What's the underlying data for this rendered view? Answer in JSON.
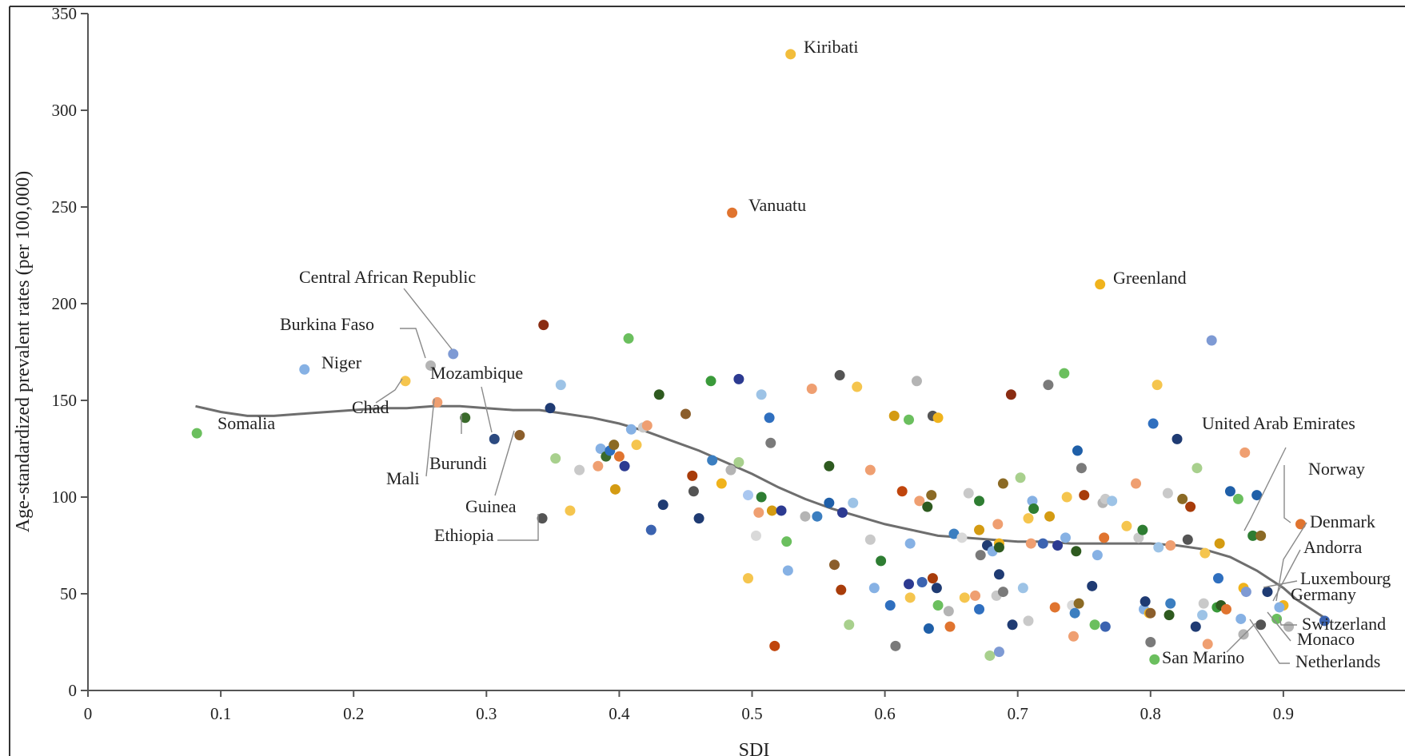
{
  "chart_data": {
    "type": "scatter",
    "xlabel": "SDI",
    "ylabel": "Age-standardized prevalent rates (per 100,000)",
    "xlim": [
      0,
      1.0
    ],
    "ylim": [
      0,
      350
    ],
    "x_ticks": [
      "0",
      "0.1",
      "0.2",
      "0.3",
      "0.4",
      "0.5",
      "0.6",
      "0.7",
      "0.8",
      "0.9"
    ],
    "y_ticks": [
      "0",
      "50",
      "100",
      "150",
      "200",
      "250",
      "300",
      "350"
    ],
    "grid": false,
    "legend": "none",
    "trend_line": {
      "color": "#6e6e6e",
      "points": [
        [
          0.081,
          147
        ],
        [
          0.1,
          144
        ],
        [
          0.12,
          142
        ],
        [
          0.14,
          142
        ],
        [
          0.16,
          143
        ],
        [
          0.18,
          144
        ],
        [
          0.2,
          145
        ],
        [
          0.22,
          146
        ],
        [
          0.24,
          146
        ],
        [
          0.26,
          147
        ],
        [
          0.28,
          147
        ],
        [
          0.3,
          146
        ],
        [
          0.32,
          145
        ],
        [
          0.34,
          145
        ],
        [
          0.36,
          143
        ],
        [
          0.38,
          141
        ],
        [
          0.4,
          138
        ],
        [
          0.42,
          134
        ],
        [
          0.44,
          129
        ],
        [
          0.46,
          124
        ],
        [
          0.48,
          118
        ],
        [
          0.5,
          112
        ],
        [
          0.52,
          105
        ],
        [
          0.54,
          99
        ],
        [
          0.56,
          94
        ],
        [
          0.58,
          90
        ],
        [
          0.6,
          86
        ],
        [
          0.62,
          83
        ],
        [
          0.64,
          80
        ],
        [
          0.66,
          79
        ],
        [
          0.68,
          78
        ],
        [
          0.7,
          77
        ],
        [
          0.72,
          77
        ],
        [
          0.74,
          76
        ],
        [
          0.76,
          76
        ],
        [
          0.78,
          76
        ],
        [
          0.8,
          76
        ],
        [
          0.82,
          75
        ],
        [
          0.84,
          73
        ],
        [
          0.86,
          69
        ],
        [
          0.88,
          62
        ],
        [
          0.9,
          53
        ],
        [
          0.91,
          47
        ],
        [
          0.93,
          38
        ]
      ]
    },
    "labeled_points": [
      {
        "name": "Kiribati",
        "x": 0.529,
        "y": 329,
        "color": "#f2bd3b"
      },
      {
        "name": "Vanuatu",
        "x": 0.485,
        "y": 247,
        "color": "#e0742f"
      },
      {
        "name": "Greenland",
        "x": 0.762,
        "y": 210,
        "color": "#f0b31c"
      },
      {
        "name": "Central African Republic",
        "x": 0.275,
        "y": 174,
        "color": "#7e9ad4"
      },
      {
        "name": "Burkina Faso",
        "x": 0.258,
        "y": 168,
        "color": "#b4b4b4"
      },
      {
        "name": "Niger",
        "x": 0.163,
        "y": 166,
        "color": "#86b1e4"
      },
      {
        "name": "Chad",
        "x": 0.239,
        "y": 160,
        "color": "#f5c54e"
      },
      {
        "name": "Mozambique",
        "x": 0.306,
        "y": 130,
        "color": "#2c4a80"
      },
      {
        "name": "Mali",
        "x": 0.263,
        "y": 149,
        "color": "#ef9f71"
      },
      {
        "name": "Burundi",
        "x": 0.284,
        "y": 141,
        "color": "#3a6a2b"
      },
      {
        "name": "Guinea",
        "x": 0.325,
        "y": 132,
        "color": "#8b5e2b"
      },
      {
        "name": "Ethiopia",
        "x": 0.342,
        "y": 89,
        "color": "#545454"
      },
      {
        "name": "Somalia",
        "x": 0.082,
        "y": 133,
        "color": "#6bbf5e"
      },
      {
        "name": "United Arab Emirates",
        "x": 0.883,
        "y": 80,
        "color": "#8b6a25"
      },
      {
        "name": "Norway",
        "x": 0.913,
        "y": 86,
        "color": "#e0742f"
      },
      {
        "name": "Denmark",
        "x": 0.9,
        "y": 44,
        "color": "#f0b31c"
      },
      {
        "name": "Andorra",
        "x": 0.897,
        "y": 43,
        "color": "#86b1e4"
      },
      {
        "name": "Luxembourg",
        "x": 0.888,
        "y": 51,
        "color": "#1f3b73"
      },
      {
        "name": "Germany",
        "x": 0.931,
        "y": 36,
        "color": "#3b63b0"
      },
      {
        "name": "Switzerland",
        "x": 0.904,
        "y": 33,
        "color": "#b4b4b4"
      },
      {
        "name": "Monaco",
        "x": 0.895,
        "y": 37,
        "color": "#6bbf5e"
      },
      {
        "name": "San Marino",
        "x": 0.87,
        "y": 29,
        "color": "#b4b4b4"
      },
      {
        "name": "Netherlands",
        "x": 0.883,
        "y": 34,
        "color": "#545454"
      }
    ],
    "points": [
      {
        "x": 0.343,
        "y": 189,
        "color": "#8a2c12"
      },
      {
        "x": 0.348,
        "y": 146,
        "color": "#1f3b73"
      },
      {
        "x": 0.352,
        "y": 120,
        "color": "#a8d08d"
      },
      {
        "x": 0.356,
        "y": 158,
        "color": "#9dc3e6"
      },
      {
        "x": 0.363,
        "y": 93,
        "color": "#f5c54e"
      },
      {
        "x": 0.37,
        "y": 114,
        "color": "#c9c9c9"
      },
      {
        "x": 0.384,
        "y": 116,
        "color": "#ef9f71"
      },
      {
        "x": 0.386,
        "y": 125,
        "color": "#86b1e4"
      },
      {
        "x": 0.39,
        "y": 121,
        "color": "#3a6a2b"
      },
      {
        "x": 0.393,
        "y": 124,
        "color": "#2f6fbf"
      },
      {
        "x": 0.396,
        "y": 127,
        "color": "#8b6a25"
      },
      {
        "x": 0.397,
        "y": 104,
        "color": "#d49b12"
      },
      {
        "x": 0.4,
        "y": 121,
        "color": "#e0742f"
      },
      {
        "x": 0.404,
        "y": 116,
        "color": "#2c3a91"
      },
      {
        "x": 0.407,
        "y": 182,
        "color": "#6bbf5e"
      },
      {
        "x": 0.409,
        "y": 135,
        "color": "#86b1e4"
      },
      {
        "x": 0.413,
        "y": 127,
        "color": "#f5c54e"
      },
      {
        "x": 0.418,
        "y": 136,
        "color": "#c9c9c9"
      },
      {
        "x": 0.421,
        "y": 137,
        "color": "#ef9f71"
      },
      {
        "x": 0.424,
        "y": 83,
        "color": "#3b63b0"
      },
      {
        "x": 0.43,
        "y": 153,
        "color": "#2e5a1f"
      },
      {
        "x": 0.433,
        "y": 96,
        "color": "#1f3b73"
      },
      {
        "x": 0.45,
        "y": 143,
        "color": "#8b5e2b"
      },
      {
        "x": 0.455,
        "y": 111,
        "color": "#a83c0a"
      },
      {
        "x": 0.456,
        "y": 103,
        "color": "#545454"
      },
      {
        "x": 0.46,
        "y": 89,
        "color": "#1f3b73"
      },
      {
        "x": 0.469,
        "y": 160,
        "color": "#3a9a3a"
      },
      {
        "x": 0.47,
        "y": 119,
        "color": "#3b7ec0"
      },
      {
        "x": 0.477,
        "y": 107,
        "color": "#f0b31c"
      },
      {
        "x": 0.484,
        "y": 114,
        "color": "#b4b4b4"
      },
      {
        "x": 0.49,
        "y": 118,
        "color": "#a8d08d"
      },
      {
        "x": 0.49,
        "y": 161,
        "color": "#2c3a91"
      },
      {
        "x": 0.497,
        "y": 101,
        "color": "#a9c7f0"
      },
      {
        "x": 0.497,
        "y": 58,
        "color": "#f5c54e"
      },
      {
        "x": 0.503,
        "y": 80,
        "color": "#d9d9d9"
      },
      {
        "x": 0.505,
        "y": 92,
        "color": "#ef9f71"
      },
      {
        "x": 0.507,
        "y": 153,
        "color": "#9dc3e6"
      },
      {
        "x": 0.507,
        "y": 100,
        "color": "#2e7d32"
      },
      {
        "x": 0.513,
        "y": 141,
        "color": "#2f6fbf"
      },
      {
        "x": 0.514,
        "y": 128,
        "color": "#7a7a7a"
      },
      {
        "x": 0.515,
        "y": 93,
        "color": "#d49b12"
      },
      {
        "x": 0.517,
        "y": 23,
        "color": "#c0450c"
      },
      {
        "x": 0.522,
        "y": 93,
        "color": "#2c3a91"
      },
      {
        "x": 0.526,
        "y": 77,
        "color": "#6bbf5e"
      },
      {
        "x": 0.527,
        "y": 62,
        "color": "#86b1e4"
      },
      {
        "x": 0.54,
        "y": 90,
        "color": "#b4b4b4"
      },
      {
        "x": 0.545,
        "y": 156,
        "color": "#ef9f71"
      },
      {
        "x": 0.549,
        "y": 90,
        "color": "#3b7ec0"
      },
      {
        "x": 0.558,
        "y": 116,
        "color": "#2e5a1f"
      },
      {
        "x": 0.558,
        "y": 97,
        "color": "#1f5fa8"
      },
      {
        "x": 0.562,
        "y": 65,
        "color": "#8b5e2b"
      },
      {
        "x": 0.566,
        "y": 163,
        "color": "#545454"
      },
      {
        "x": 0.567,
        "y": 52,
        "color": "#a83c0a"
      },
      {
        "x": 0.568,
        "y": 92,
        "color": "#2c3a91"
      },
      {
        "x": 0.573,
        "y": 34,
        "color": "#a8d08d"
      },
      {
        "x": 0.576,
        "y": 97,
        "color": "#9dc3e6"
      },
      {
        "x": 0.579,
        "y": 157,
        "color": "#f5c54e"
      },
      {
        "x": 0.589,
        "y": 78,
        "color": "#c9c9c9"
      },
      {
        "x": 0.589,
        "y": 114,
        "color": "#ef9f71"
      },
      {
        "x": 0.592,
        "y": 53,
        "color": "#86b1e4"
      },
      {
        "x": 0.597,
        "y": 67,
        "color": "#2e7d32"
      },
      {
        "x": 0.604,
        "y": 44,
        "color": "#2f6fbf"
      },
      {
        "x": 0.607,
        "y": 142,
        "color": "#d49b12"
      },
      {
        "x": 0.608,
        "y": 23,
        "color": "#7a7a7a"
      },
      {
        "x": 0.613,
        "y": 103,
        "color": "#c0450c"
      },
      {
        "x": 0.618,
        "y": 55,
        "color": "#2c3a91"
      },
      {
        "x": 0.618,
        "y": 140,
        "color": "#6bbf5e"
      },
      {
        "x": 0.619,
        "y": 76,
        "color": "#86b1e4"
      },
      {
        "x": 0.619,
        "y": 48,
        "color": "#f5c54e"
      },
      {
        "x": 0.624,
        "y": 160,
        "color": "#b4b4b4"
      },
      {
        "x": 0.626,
        "y": 98,
        "color": "#ef9f71"
      },
      {
        "x": 0.628,
        "y": 56,
        "color": "#3b63b0"
      },
      {
        "x": 0.632,
        "y": 95,
        "color": "#2e5a1f"
      },
      {
        "x": 0.633,
        "y": 32,
        "color": "#1f5fa8"
      },
      {
        "x": 0.635,
        "y": 101,
        "color": "#8b6a25"
      },
      {
        "x": 0.636,
        "y": 58,
        "color": "#a83c0a"
      },
      {
        "x": 0.636,
        "y": 142,
        "color": "#545454"
      },
      {
        "x": 0.639,
        "y": 53,
        "color": "#1f3b73"
      },
      {
        "x": 0.64,
        "y": 44,
        "color": "#6bbf5e"
      },
      {
        "x": 0.64,
        "y": 141,
        "color": "#f0b31c"
      },
      {
        "x": 0.648,
        "y": 41,
        "color": "#b4b4b4"
      },
      {
        "x": 0.649,
        "y": 33,
        "color": "#e0742f"
      },
      {
        "x": 0.652,
        "y": 81,
        "color": "#3b7ec0"
      },
      {
        "x": 0.658,
        "y": 79,
        "color": "#d9d9d9"
      },
      {
        "x": 0.66,
        "y": 48,
        "color": "#f5c54e"
      },
      {
        "x": 0.663,
        "y": 102,
        "color": "#c9c9c9"
      },
      {
        "x": 0.668,
        "y": 49,
        "color": "#ef9f71"
      },
      {
        "x": 0.671,
        "y": 42,
        "color": "#2f6fbf"
      },
      {
        "x": 0.671,
        "y": 83,
        "color": "#d49b12"
      },
      {
        "x": 0.671,
        "y": 98,
        "color": "#2e7d32"
      },
      {
        "x": 0.672,
        "y": 70,
        "color": "#7a7a7a"
      },
      {
        "x": 0.677,
        "y": 75,
        "color": "#1f3b73"
      },
      {
        "x": 0.679,
        "y": 18,
        "color": "#a8d08d"
      },
      {
        "x": 0.681,
        "y": 72,
        "color": "#86b1e4"
      },
      {
        "x": 0.684,
        "y": 49,
        "color": "#c9c9c9"
      },
      {
        "x": 0.685,
        "y": 86,
        "color": "#ef9f71"
      },
      {
        "x": 0.686,
        "y": 76,
        "color": "#f0b31c"
      },
      {
        "x": 0.686,
        "y": 74,
        "color": "#2e5a1f"
      },
      {
        "x": 0.686,
        "y": 60,
        "color": "#1f3b73"
      },
      {
        "x": 0.686,
        "y": 20,
        "color": "#7e9ad4"
      },
      {
        "x": 0.689,
        "y": 51,
        "color": "#7a7a7a"
      },
      {
        "x": 0.689,
        "y": 107,
        "color": "#8b6a25"
      },
      {
        "x": 0.695,
        "y": 153,
        "color": "#8a2c12"
      },
      {
        "x": 0.696,
        "y": 34,
        "color": "#1f3b73"
      },
      {
        "x": 0.702,
        "y": 110,
        "color": "#a8d08d"
      },
      {
        "x": 0.704,
        "y": 53,
        "color": "#9dc3e6"
      },
      {
        "x": 0.708,
        "y": 89,
        "color": "#f5c54e"
      },
      {
        "x": 0.708,
        "y": 36,
        "color": "#c9c9c9"
      },
      {
        "x": 0.71,
        "y": 76,
        "color": "#ef9f71"
      },
      {
        "x": 0.711,
        "y": 98,
        "color": "#86b1e4"
      },
      {
        "x": 0.712,
        "y": 94,
        "color": "#2e7d32"
      },
      {
        "x": 0.719,
        "y": 76,
        "color": "#3b63b0"
      },
      {
        "x": 0.723,
        "y": 158,
        "color": "#7a7a7a"
      },
      {
        "x": 0.724,
        "y": 90,
        "color": "#d49b12"
      },
      {
        "x": 0.728,
        "y": 43,
        "color": "#e0742f"
      },
      {
        "x": 0.73,
        "y": 75,
        "color": "#2c3a91"
      },
      {
        "x": 0.735,
        "y": 164,
        "color": "#6bbf5e"
      },
      {
        "x": 0.736,
        "y": 79,
        "color": "#86b1e4"
      },
      {
        "x": 0.737,
        "y": 100,
        "color": "#f5c54e"
      },
      {
        "x": 0.741,
        "y": 44,
        "color": "#d9d9d9"
      },
      {
        "x": 0.742,
        "y": 28,
        "color": "#ef9f71"
      },
      {
        "x": 0.743,
        "y": 40,
        "color": "#3b7ec0"
      },
      {
        "x": 0.744,
        "y": 72,
        "color": "#2e5a1f"
      },
      {
        "x": 0.745,
        "y": 124,
        "color": "#1f5fa8"
      },
      {
        "x": 0.746,
        "y": 45,
        "color": "#8b6a25"
      },
      {
        "x": 0.748,
        "y": 115,
        "color": "#7a7a7a"
      },
      {
        "x": 0.75,
        "y": 101,
        "color": "#a83c0a"
      },
      {
        "x": 0.756,
        "y": 54,
        "color": "#1f3b73"
      },
      {
        "x": 0.758,
        "y": 34,
        "color": "#6bbf5e"
      },
      {
        "x": 0.76,
        "y": 70,
        "color": "#86b1e4"
      },
      {
        "x": 0.764,
        "y": 97,
        "color": "#b4b4b4"
      },
      {
        "x": 0.765,
        "y": 79,
        "color": "#e0742f"
      },
      {
        "x": 0.766,
        "y": 99,
        "color": "#c9c9c9"
      },
      {
        "x": 0.766,
        "y": 33,
        "color": "#3b63b0"
      },
      {
        "x": 0.771,
        "y": 98,
        "color": "#9dc3e6"
      },
      {
        "x": 0.782,
        "y": 85,
        "color": "#f5c54e"
      },
      {
        "x": 0.789,
        "y": 107,
        "color": "#ef9f71"
      },
      {
        "x": 0.791,
        "y": 79,
        "color": "#c9c9c9"
      },
      {
        "x": 0.794,
        "y": 83,
        "color": "#2e7d32"
      },
      {
        "x": 0.795,
        "y": 42,
        "color": "#86b1e4"
      },
      {
        "x": 0.796,
        "y": 46,
        "color": "#1f3b73"
      },
      {
        "x": 0.799,
        "y": 40,
        "color": "#f0b31c"
      },
      {
        "x": 0.8,
        "y": 40,
        "color": "#8b5e2b"
      },
      {
        "x": 0.8,
        "y": 25,
        "color": "#7a7a7a"
      },
      {
        "x": 0.802,
        "y": 138,
        "color": "#2f6fbf"
      },
      {
        "x": 0.803,
        "y": 16,
        "color": "#6bbf5e"
      },
      {
        "x": 0.805,
        "y": 158,
        "color": "#f5c54e"
      },
      {
        "x": 0.806,
        "y": 74,
        "color": "#9dc3e6"
      },
      {
        "x": 0.813,
        "y": 102,
        "color": "#c9c9c9"
      },
      {
        "x": 0.814,
        "y": 39,
        "color": "#2e5a1f"
      },
      {
        "x": 0.815,
        "y": 75,
        "color": "#ef9f71"
      },
      {
        "x": 0.815,
        "y": 45,
        "color": "#3b7ec0"
      },
      {
        "x": 0.82,
        "y": 130,
        "color": "#1f3b73"
      },
      {
        "x": 0.824,
        "y": 99,
        "color": "#8b6a25"
      },
      {
        "x": 0.828,
        "y": 78,
        "color": "#545454"
      },
      {
        "x": 0.83,
        "y": 95,
        "color": "#a83c0a"
      },
      {
        "x": 0.834,
        "y": 33,
        "color": "#1f3b73"
      },
      {
        "x": 0.835,
        "y": 115,
        "color": "#a8d08d"
      },
      {
        "x": 0.839,
        "y": 39,
        "color": "#9dc3e6"
      },
      {
        "x": 0.84,
        "y": 45,
        "color": "#c9c9c9"
      },
      {
        "x": 0.841,
        "y": 71,
        "color": "#f5c54e"
      },
      {
        "x": 0.843,
        "y": 24,
        "color": "#ef9f71"
      },
      {
        "x": 0.846,
        "y": 181,
        "color": "#7e9ad4"
      },
      {
        "x": 0.85,
        "y": 43,
        "color": "#3a9a3a"
      },
      {
        "x": 0.851,
        "y": 58,
        "color": "#2f6fbf"
      },
      {
        "x": 0.852,
        "y": 76,
        "color": "#d49b12"
      },
      {
        "x": 0.853,
        "y": 44,
        "color": "#2e5a1f"
      },
      {
        "x": 0.857,
        "y": 42,
        "color": "#e0742f"
      },
      {
        "x": 0.86,
        "y": 103,
        "color": "#1f5fa8"
      },
      {
        "x": 0.866,
        "y": 99,
        "color": "#6bbf5e"
      },
      {
        "x": 0.868,
        "y": 37,
        "color": "#86b1e4"
      },
      {
        "x": 0.87,
        "y": 53,
        "color": "#f0b31c"
      },
      {
        "x": 0.87,
        "y": 29,
        "color": "#b4b4b4"
      },
      {
        "x": 0.871,
        "y": 123,
        "color": "#ef9f71"
      },
      {
        "x": 0.872,
        "y": 51,
        "color": "#7e9ad4"
      },
      {
        "x": 0.877,
        "y": 80,
        "color": "#2e7d32"
      },
      {
        "x": 0.88,
        "y": 101,
        "color": "#1f5fa8"
      }
    ]
  }
}
